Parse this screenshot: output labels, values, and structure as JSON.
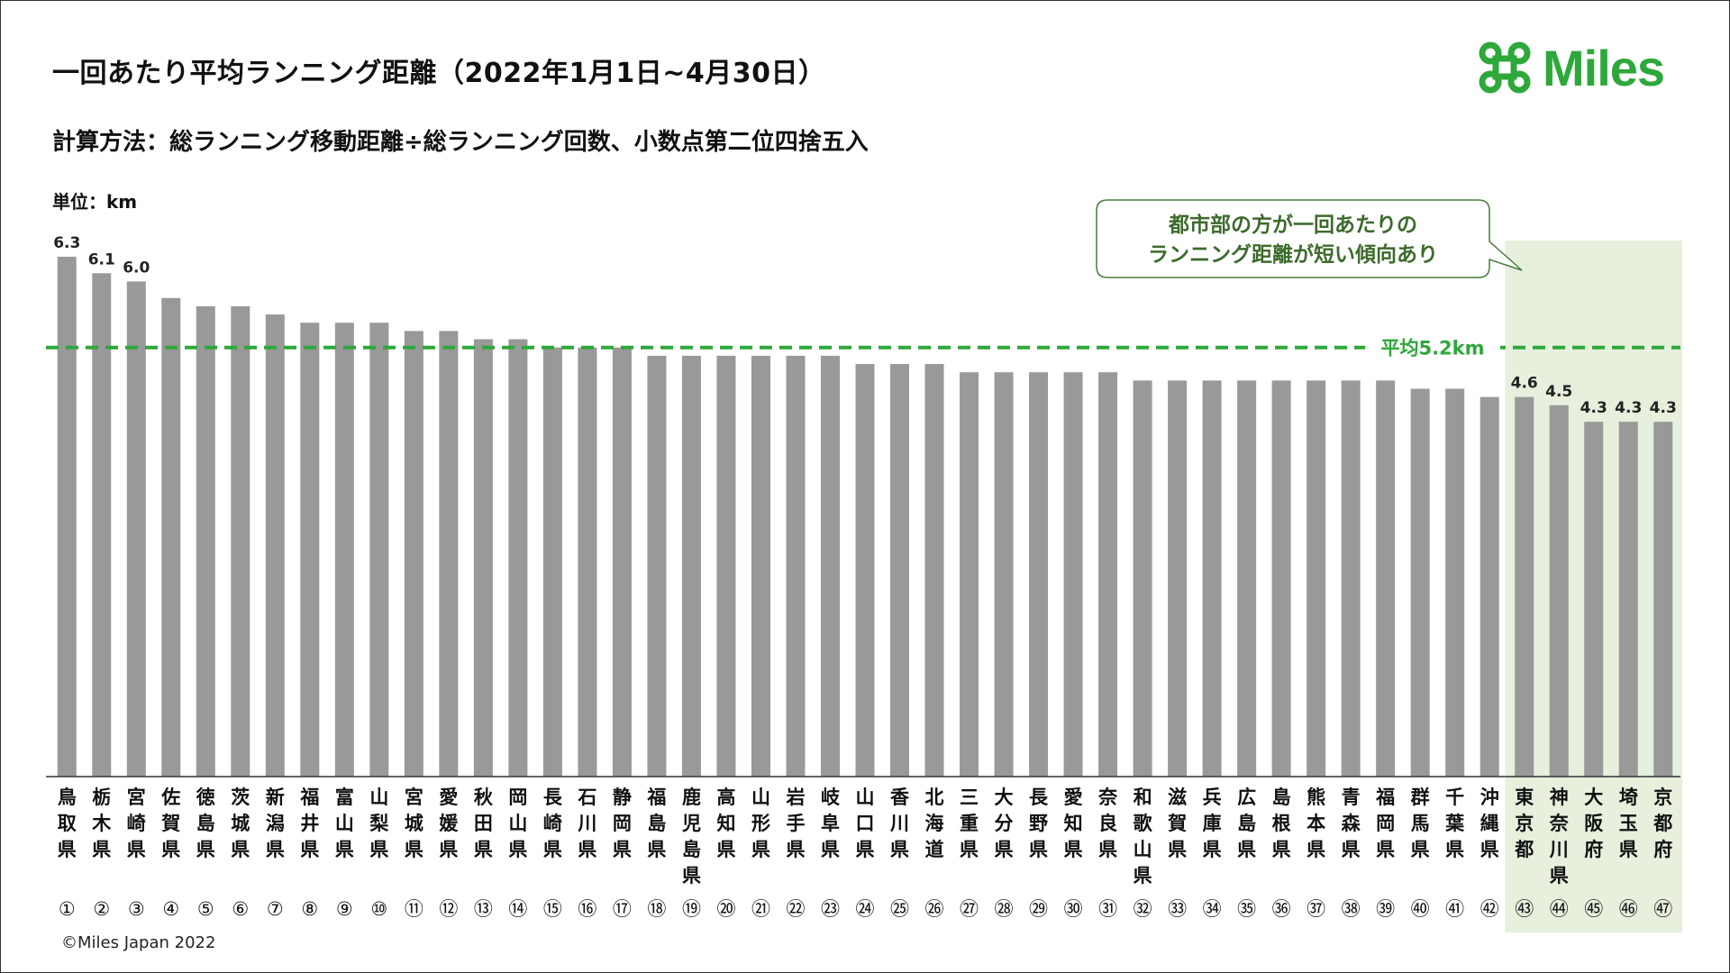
{
  "header": {
    "title": "一回あたり平均ランニング距離（2022年1月1日~4月30日）",
    "subtitle": "計算方法：総ランニング移動距離÷総ランニング回数、小数点第二位四捨五入",
    "unit_label": "単位：km"
  },
  "brand": {
    "logo_text": "Miles",
    "logo_icon": "command-key-icon",
    "color": "#2ea83a"
  },
  "footer": {
    "copyright": "©Miles Japan 2022"
  },
  "colors": {
    "bar": "#999999",
    "average_line": "#2ea83a",
    "highlight_bg": "#e6f0dd",
    "callout_border": "#4a7a3a",
    "callout_text": "#3d6b2c"
  },
  "chart_data": {
    "type": "bar",
    "ylim": [
      0,
      6.9
    ],
    "grid": false,
    "categories": [
      "鳥取県",
      "栃木県",
      "宮崎県",
      "佐賀県",
      "徳島県",
      "茨城県",
      "新潟県",
      "福井県",
      "富山県",
      "山梨県",
      "宮城県",
      "愛媛県",
      "秋田県",
      "岡山県",
      "長崎県",
      "石川県",
      "静岡県",
      "福島県",
      "鹿児島県",
      "高知県",
      "山形県",
      "岩手県",
      "岐阜県",
      "山口県",
      "香川県",
      "北海道",
      "三重県",
      "大分県",
      "長野県",
      "愛知県",
      "奈良県",
      "和歌山県",
      "滋賀県",
      "兵庫県",
      "広島県",
      "島根県",
      "熊本県",
      "青森県",
      "福岡県",
      "群馬県",
      "千葉県",
      "沖縄県",
      "東京都",
      "神奈川県",
      "大阪府",
      "埼玉県",
      "京都府"
    ],
    "ranks": [
      "①",
      "②",
      "③",
      "④",
      "⑤",
      "⑥",
      "⑦",
      "⑧",
      "⑨",
      "⑩",
      "⑪",
      "⑫",
      "⑬",
      "⑭",
      "⑮",
      "⑯",
      "⑰",
      "⑱",
      "⑲",
      "⑳",
      "㉑",
      "㉒",
      "㉓",
      "㉔",
      "㉕",
      "㉖",
      "㉗",
      "㉘",
      "㉙",
      "㉚",
      "㉛",
      "㉜",
      "㉝",
      "㉞",
      "㉟",
      "㊱",
      "㊲",
      "㊳",
      "㊴",
      "㊵",
      "㊶",
      "㊷",
      "㊸",
      "㊹",
      "㊺",
      "㊻",
      "㊼"
    ],
    "values": [
      6.3,
      6.1,
      6.0,
      5.8,
      5.7,
      5.7,
      5.6,
      5.5,
      5.5,
      5.5,
      5.4,
      5.4,
      5.3,
      5.3,
      5.2,
      5.2,
      5.2,
      5.1,
      5.1,
      5.1,
      5.1,
      5.1,
      5.1,
      5.0,
      5.0,
      5.0,
      4.9,
      4.9,
      4.9,
      4.9,
      4.9,
      4.8,
      4.8,
      4.8,
      4.8,
      4.8,
      4.8,
      4.8,
      4.8,
      4.7,
      4.7,
      4.6,
      4.6,
      4.5,
      4.3,
      4.3,
      4.3
    ],
    "labeled_values": {
      "0": "6.3",
      "1": "6.1",
      "2": "6.0",
      "42": "4.6",
      "43": "4.5",
      "44": "4.3",
      "45": "4.3",
      "46": "4.3"
    },
    "average": {
      "value": 5.2,
      "label": "平均5.2km"
    },
    "highlight": {
      "from_index": 42,
      "to_index": 46
    },
    "callout": {
      "line1": "都市部の方が一回あたりの",
      "line2": "ランニング距離が短い傾向あり"
    }
  }
}
